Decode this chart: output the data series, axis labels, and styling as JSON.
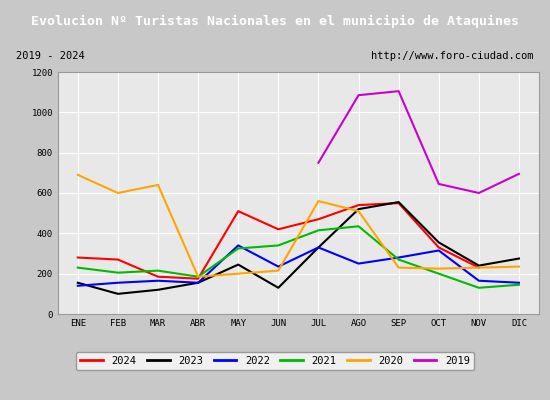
{
  "title": "Evolucion Nº Turistas Nacionales en el municipio de Ataquines",
  "subtitle_left": "2019 - 2024",
  "subtitle_right": "http://www.foro-ciudad.com",
  "title_bg_color": "#4472c4",
  "title_text_color": "#ffffff",
  "months": [
    "ENE",
    "FEB",
    "MAR",
    "ABR",
    "MAY",
    "JUN",
    "JUL",
    "AGO",
    "SEP",
    "OCT",
    "NOV",
    "DIC"
  ],
  "ylim": [
    0,
    1200
  ],
  "yticks": [
    0,
    200,
    400,
    600,
    800,
    1000,
    1200
  ],
  "series": {
    "2024": {
      "color": "#ff0000",
      "data": [
        280,
        270,
        185,
        175,
        510,
        420,
        470,
        540,
        550,
        330,
        230,
        null
      ]
    },
    "2023": {
      "color": "#000000",
      "data": [
        155,
        100,
        120,
        155,
        245,
        130,
        330,
        520,
        555,
        355,
        240,
        275
      ]
    },
    "2022": {
      "color": "#0000ff",
      "data": [
        140,
        155,
        165,
        155,
        340,
        235,
        330,
        250,
        280,
        315,
        165,
        155
      ]
    },
    "2021": {
      "color": "#00bb00",
      "data": [
        230,
        205,
        215,
        185,
        325,
        340,
        415,
        435,
        270,
        200,
        130,
        145
      ]
    },
    "2020": {
      "color": "#ffa500",
      "data": [
        690,
        600,
        640,
        185,
        200,
        215,
        560,
        510,
        230,
        225,
        230,
        235
      ]
    },
    "2019": {
      "color": "#cc00cc",
      "data": [
        null,
        null,
        null,
        null,
        null,
        null,
        750,
        1085,
        1105,
        645,
        600,
        695
      ]
    }
  },
  "legend_order": [
    "2024",
    "2023",
    "2022",
    "2021",
    "2020",
    "2019"
  ],
  "plot_bg_color": "#e8e8e8",
  "grid_color": "#ffffff",
  "fig_bg_color": "#c8c8c8",
  "subtitle_bg_color": "#f0f0f0",
  "font_family": "DejaVu Sans Mono"
}
